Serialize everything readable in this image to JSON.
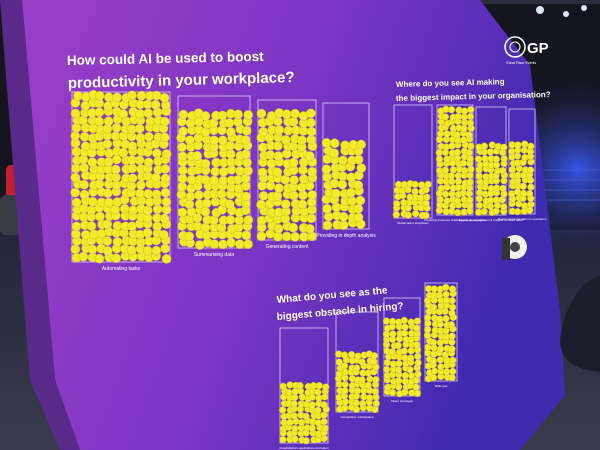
{
  "board": {
    "logo_text": "GP",
    "logo_subtitle": "Great Place Events",
    "q1": {
      "title_line1": "How could AI be used to boost",
      "title_line2": "productivity in your workplace?",
      "columns": [
        {
          "label": "Automating tasks",
          "fill": 1.0
        },
        {
          "label": "Summarising data",
          "fill": 0.93
        },
        {
          "label": "Generating content",
          "fill": 0.95
        },
        {
          "label": "Providing in depth analysis",
          "fill": 0.72
        }
      ]
    },
    "q2": {
      "title_line1": "Where do you see AI making",
      "title_line2": "the biggest impact in your organisation?",
      "columns": [
        {
          "label": "Global talent acquisition",
          "fill": 0.33
        },
        {
          "label": "Predicting business challenges & opportunities",
          "fill": 0.98
        },
        {
          "label": "Employee engagement & insights to retain talent",
          "fill": 0.7
        },
        {
          "label": "Augmented automation in operations",
          "fill": 0.68
        }
      ]
    },
    "q3": {
      "title_line1": "What do you see as the",
      "title_line2": "biggest obstacle in hiring?",
      "columns": [
        {
          "label": "Unsatisfactory applications and talent",
          "fill": 0.55
        },
        {
          "label": "Competitive marketplace",
          "fill": 0.62
        },
        {
          "label": "Talent shortages",
          "fill": 0.78
        },
        {
          "label": "Skills gap",
          "fill": 1.0
        }
      ]
    },
    "colors": {
      "board_left": "#8a3cc4",
      "board_right": "#4a2bb0",
      "sticker": "#f2ea2a",
      "text": "#ffffff"
    }
  }
}
